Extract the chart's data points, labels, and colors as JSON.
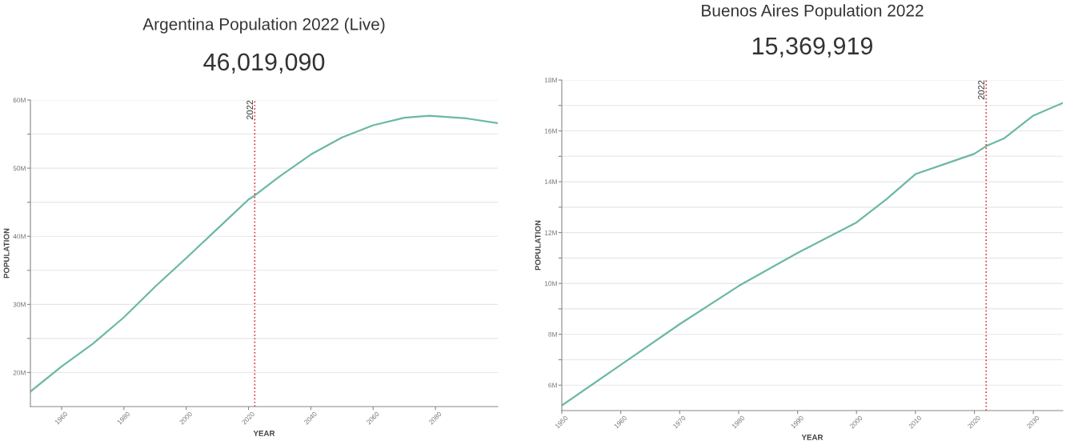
{
  "chart_data": [
    {
      "type": "line",
      "title": "Argentina Population 2022 (Live)",
      "subtitle": "46,019,090",
      "xlabel": "YEAR",
      "ylabel": "POPULATION",
      "x": [
        1950,
        1960,
        1970,
        1980,
        1990,
        2000,
        2010,
        2020,
        2022,
        2030,
        2040,
        2050,
        2060,
        2070,
        2078,
        2090,
        2100
      ],
      "series": [
        {
          "color": "#6bb8a6",
          "values": [
            17.2,
            20.9,
            24.2,
            28.1,
            32.6,
            36.8,
            41.1,
            45.4,
            46.0,
            48.8,
            52.0,
            54.5,
            56.3,
            57.4,
            57.7,
            57.3,
            56.6
          ]
        }
      ],
      "xlim": [
        1950,
        2100
      ],
      "xticks": [
        1960,
        1980,
        2000,
        2020,
        2040,
        2060,
        2080
      ],
      "ylim": [
        15,
        60
      ],
      "yticks": [
        {
          "value": 20,
          "label": "20M"
        },
        {
          "value": 25,
          "label": null
        },
        {
          "value": 30,
          "label": "30M"
        },
        {
          "value": 35,
          "label": null
        },
        {
          "value": 40,
          "label": "40M"
        },
        {
          "value": 45,
          "label": null
        },
        {
          "value": 50,
          "label": "50M"
        },
        {
          "value": 55,
          "label": null
        },
        {
          "value": 60,
          "label": "60M"
        }
      ],
      "grid": "y",
      "ref_lines": [
        {
          "axis": "x",
          "value": 2022,
          "label": "2022",
          "color": "#e0303a",
          "line_style": "dotted"
        }
      ]
    },
    {
      "type": "line",
      "title": "Buenos Aires Population 2022",
      "subtitle": "15,369,919",
      "xlabel": "YEAR",
      "ylabel": "POPULATION",
      "x": [
        1950,
        1960,
        1970,
        1980,
        1990,
        2000,
        2005,
        2010,
        2015,
        2020,
        2022,
        2025,
        2030,
        2035
      ],
      "series": [
        {
          "color": "#6bb8a6",
          "values": [
            5.2,
            6.8,
            8.4,
            9.9,
            11.2,
            12.4,
            13.3,
            14.3,
            14.7,
            15.1,
            15.4,
            15.7,
            16.6,
            17.1
          ]
        }
      ],
      "xlim": [
        1950,
        2035
      ],
      "xticks": [
        1950,
        1960,
        1970,
        1980,
        1990,
        2000,
        2010,
        2020,
        2030
      ],
      "ylim": [
        5,
        18
      ],
      "yticks": [
        {
          "value": 6,
          "label": "6M"
        },
        {
          "value": 7,
          "label": null
        },
        {
          "value": 8,
          "label": "8M"
        },
        {
          "value": 9,
          "label": null
        },
        {
          "value": 10,
          "label": "10M"
        },
        {
          "value": 11,
          "label": null
        },
        {
          "value": 12,
          "label": "12M"
        },
        {
          "value": 13,
          "label": null
        },
        {
          "value": 14,
          "label": "14M"
        },
        {
          "value": 15,
          "label": null
        },
        {
          "value": 16,
          "label": "16M"
        },
        {
          "value": 17,
          "label": null
        },
        {
          "value": 18,
          "label": "18M"
        }
      ],
      "grid": "y",
      "ref_lines": [
        {
          "axis": "x",
          "value": 2022,
          "label": "2022",
          "color": "#e0303a",
          "line_style": "dotted"
        }
      ]
    }
  ]
}
